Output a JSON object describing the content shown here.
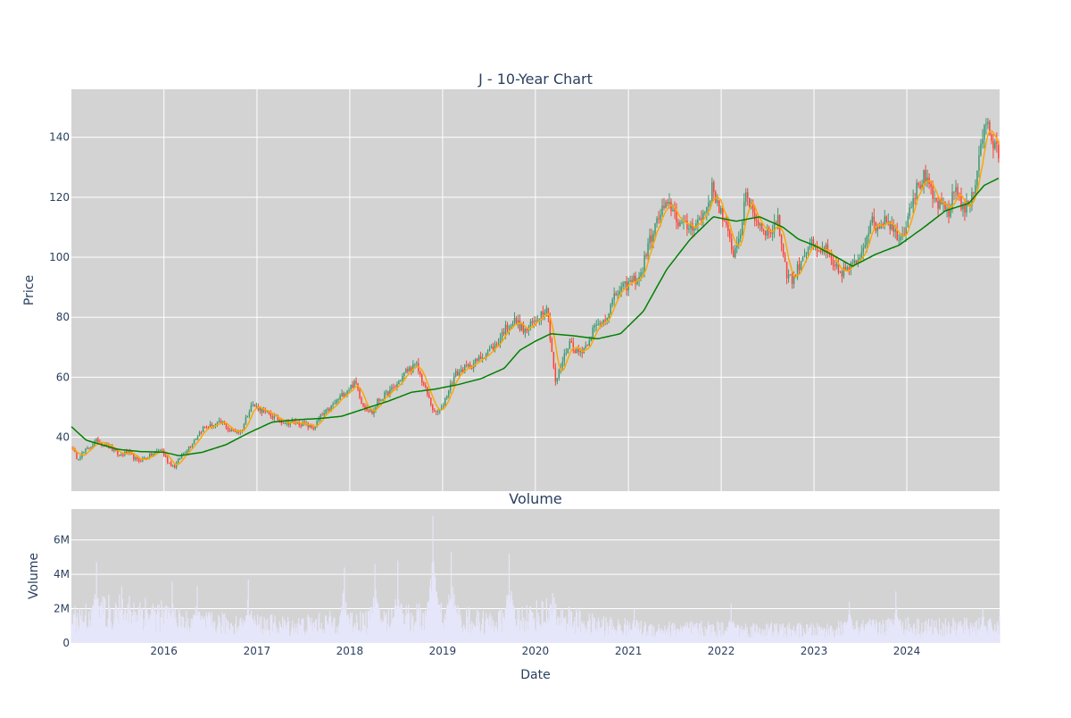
{
  "chart_data": [
    {
      "type": "candlestick",
      "title": "J - 10-Year Chart",
      "ylabel": "Price",
      "ylim": [
        22,
        156
      ],
      "y_ticks": [
        "40",
        "60",
        "80",
        "100",
        "120",
        "140"
      ],
      "y_tick_values": [
        40,
        60,
        80,
        100,
        120,
        140
      ],
      "grid": true,
      "up_color": "#3d9970",
      "down_color": "#ff4136",
      "short_ma_color": "#ffa500",
      "long_ma_color": "#008000",
      "background": "#d3d3d3",
      "close_anchors": [
        [
          "2015-01-02",
          37
        ],
        [
          "2015-01-25",
          33
        ],
        [
          "2015-03-05",
          36
        ],
        [
          "2015-04-15",
          39
        ],
        [
          "2015-05-25",
          37
        ],
        [
          "2015-07-10",
          34
        ],
        [
          "2015-08-10",
          35
        ],
        [
          "2015-09-20",
          32
        ],
        [
          "2015-11-10",
          34
        ],
        [
          "2015-12-20",
          36
        ],
        [
          "2016-01-15",
          32
        ],
        [
          "2016-02-10",
          30
        ],
        [
          "2016-03-10",
          34
        ],
        [
          "2016-04-20",
          38
        ],
        [
          "2016-06-01",
          43
        ],
        [
          "2016-07-15",
          44
        ],
        [
          "2016-08-20",
          45
        ],
        [
          "2016-09-15",
          42
        ],
        [
          "2016-11-01",
          42
        ],
        [
          "2016-11-25",
          48
        ],
        [
          "2016-12-10",
          51
        ],
        [
          "2017-01-20",
          49
        ],
        [
          "2017-03-01",
          47
        ],
        [
          "2017-04-20",
          45
        ],
        [
          "2017-06-01",
          45
        ],
        [
          "2017-07-15",
          44
        ],
        [
          "2017-08-10",
          43
        ],
        [
          "2017-09-10",
          47
        ],
        [
          "2017-10-10",
          49
        ],
        [
          "2017-11-20",
          53
        ],
        [
          "2018-01-05",
          57
        ],
        [
          "2018-01-25",
          58
        ],
        [
          "2018-02-20",
          51
        ],
        [
          "2018-04-01",
          48
        ],
        [
          "2018-04-20",
          52
        ],
        [
          "2018-05-20",
          54
        ],
        [
          "2018-07-01",
          57
        ],
        [
          "2018-08-10",
          62
        ],
        [
          "2018-09-20",
          64
        ],
        [
          "2018-10-25",
          56
        ],
        [
          "2018-11-30",
          48
        ],
        [
          "2018-12-25",
          49
        ],
        [
          "2019-01-25",
          56
        ],
        [
          "2019-02-20",
          61
        ],
        [
          "2019-04-01",
          63
        ],
        [
          "2019-05-10",
          65
        ],
        [
          "2019-06-20",
          68
        ],
        [
          "2019-08-01",
          71
        ],
        [
          "2019-09-01",
          76
        ],
        [
          "2019-10-15",
          79
        ],
        [
          "2019-11-20",
          75
        ],
        [
          "2020-01-01",
          79
        ],
        [
          "2020-02-15",
          84
        ],
        [
          "2020-03-20",
          58
        ],
        [
          "2020-04-15",
          65
        ],
        [
          "2020-05-15",
          72
        ],
        [
          "2020-06-15",
          68
        ],
        [
          "2020-07-15",
          70
        ],
        [
          "2020-08-15",
          76
        ],
        [
          "2020-09-15",
          78
        ],
        [
          "2020-10-15",
          82
        ],
        [
          "2020-11-15",
          88
        ],
        [
          "2020-12-15",
          90
        ],
        [
          "2021-01-15",
          92
        ],
        [
          "2021-02-20",
          94
        ],
        [
          "2021-03-15",
          103
        ],
        [
          "2021-04-15",
          110
        ],
        [
          "2021-05-15",
          116
        ],
        [
          "2021-06-20",
          117
        ],
        [
          "2021-07-15",
          112
        ],
        [
          "2021-08-15",
          110
        ],
        [
          "2021-09-15",
          111
        ],
        [
          "2021-10-15",
          113
        ],
        [
          "2021-11-10",
          118
        ],
        [
          "2021-11-25",
          123
        ],
        [
          "2021-12-20",
          118
        ],
        [
          "2022-01-10",
          112
        ],
        [
          "2022-02-20",
          101
        ],
        [
          "2022-03-20",
          110
        ],
        [
          "2022-04-10",
          121
        ],
        [
          "2022-05-20",
          112
        ],
        [
          "2022-06-15",
          110
        ],
        [
          "2022-07-10",
          108
        ],
        [
          "2022-08-10",
          113
        ],
        [
          "2022-09-15",
          95
        ],
        [
          "2022-10-10",
          92
        ],
        [
          "2022-11-15",
          100
        ],
        [
          "2022-12-15",
          105
        ],
        [
          "2023-01-15",
          101
        ],
        [
          "2023-02-15",
          103
        ],
        [
          "2023-03-15",
          97
        ],
        [
          "2023-04-15",
          95
        ],
        [
          "2023-05-15",
          96
        ],
        [
          "2023-06-15",
          98
        ],
        [
          "2023-07-15",
          104
        ],
        [
          "2023-08-10",
          112
        ],
        [
          "2023-09-10",
          110
        ],
        [
          "2023-10-10",
          114
        ],
        [
          "2023-11-15",
          108
        ],
        [
          "2023-12-15",
          107
        ],
        [
          "2024-01-15",
          118
        ],
        [
          "2024-02-10",
          123
        ],
        [
          "2024-03-10",
          127
        ],
        [
          "2024-04-15",
          119
        ],
        [
          "2024-05-15",
          117
        ],
        [
          "2024-06-15",
          115
        ],
        [
          "2024-07-10",
          124
        ],
        [
          "2024-08-10",
          116
        ],
        [
          "2024-09-10",
          118
        ],
        [
          "2024-10-01",
          128
        ],
        [
          "2024-10-20",
          140
        ],
        [
          "2024-11-15",
          145
        ],
        [
          "2024-12-01",
          138
        ],
        [
          "2024-12-31",
          134
        ]
      ],
      "long_ma_anchors": [
        [
          "2015-01-02",
          43.5
        ],
        [
          "2015-03-01",
          39
        ],
        [
          "2015-07-01",
          36
        ],
        [
          "2015-10-01",
          35.2
        ],
        [
          "2016-01-01",
          35
        ],
        [
          "2016-03-01",
          33.8
        ],
        [
          "2016-06-01",
          35
        ],
        [
          "2016-09-01",
          37.5
        ],
        [
          "2016-12-01",
          41.5
        ],
        [
          "2017-03-01",
          45
        ],
        [
          "2017-06-01",
          45.8
        ],
        [
          "2017-09-01",
          46.2
        ],
        [
          "2017-12-01",
          47
        ],
        [
          "2018-03-01",
          49.5
        ],
        [
          "2018-06-01",
          52
        ],
        [
          "2018-09-01",
          55
        ],
        [
          "2018-12-01",
          56
        ],
        [
          "2019-03-01",
          57.5
        ],
        [
          "2019-06-01",
          59.5
        ],
        [
          "2019-09-01",
          63
        ],
        [
          "2019-11-01",
          69
        ],
        [
          "2020-01-01",
          72
        ],
        [
          "2020-03-01",
          74.5
        ],
        [
          "2020-06-01",
          73.8
        ],
        [
          "2020-09-01",
          72.8
        ],
        [
          "2020-12-01",
          74.5
        ],
        [
          "2021-03-01",
          82
        ],
        [
          "2021-06-01",
          96
        ],
        [
          "2021-09-01",
          106
        ],
        [
          "2021-12-01",
          113.5
        ],
        [
          "2022-03-01",
          112
        ],
        [
          "2022-06-01",
          113.5
        ],
        [
          "2022-09-01",
          110
        ],
        [
          "2022-11-01",
          106
        ],
        [
          "2023-01-01",
          104
        ],
        [
          "2023-04-01",
          100
        ],
        [
          "2023-06-01",
          97
        ],
        [
          "2023-09-01",
          101
        ],
        [
          "2023-12-01",
          104
        ],
        [
          "2024-03-01",
          109.5
        ],
        [
          "2024-06-01",
          115.5
        ],
        [
          "2024-09-01",
          118
        ],
        [
          "2024-11-01",
          124
        ],
        [
          "2024-12-31",
          126.5
        ]
      ]
    },
    {
      "type": "bar",
      "title": "Volume",
      "xlabel": "Date",
      "ylabel": "Volume",
      "ylim": [
        0,
        7800000
      ],
      "y_ticks": [
        "0",
        "2M",
        "4M",
        "6M"
      ],
      "y_tick_values": [
        0,
        2000000,
        4000000,
        6000000
      ],
      "x_ticks": [
        "2016",
        "2017",
        "2018",
        "2019",
        "2020",
        "2021",
        "2022",
        "2023",
        "2024"
      ],
      "x_tick_dates": [
        "2016-01-01",
        "2017-01-01",
        "2018-01-01",
        "2019-01-01",
        "2020-01-01",
        "2021-01-01",
        "2022-01-01",
        "2023-01-01",
        "2024-01-01"
      ],
      "x_range": [
        "2015-01-02",
        "2024-12-31"
      ],
      "bar_color": "#e6e6fa",
      "background": "#d3d3d3",
      "base_volume_anchors": [
        [
          "2015-01-02",
          1600000
        ],
        [
          "2015-06-01",
          2000000
        ],
        [
          "2015-10-01",
          2100000
        ],
        [
          "2016-04-01",
          1300000
        ],
        [
          "2017-01-01",
          1200000
        ],
        [
          "2017-06-01",
          1100000
        ],
        [
          "2018-01-01",
          1400000
        ],
        [
          "2018-07-01",
          1500000
        ],
        [
          "2019-01-01",
          1800000
        ],
        [
          "2019-07-01",
          1300000
        ],
        [
          "2020-03-01",
          1900000
        ],
        [
          "2020-08-01",
          1200000
        ],
        [
          "2021-03-01",
          900000
        ],
        [
          "2022-01-01",
          900000
        ],
        [
          "2023-01-01",
          800000
        ],
        [
          "2023-12-01",
          1100000
        ],
        [
          "2024-06-01",
          1000000
        ],
        [
          "2024-12-31",
          1100000
        ]
      ],
      "volume_spikes": [
        [
          "2015-04-10",
          4700000
        ],
        [
          "2015-07-20",
          3300000
        ],
        [
          "2016-02-01",
          3600000
        ],
        [
          "2016-05-10",
          3300000
        ],
        [
          "2016-11-28",
          3700000
        ],
        [
          "2017-12-10",
          4400000
        ],
        [
          "2018-04-10",
          4600000
        ],
        [
          "2018-07-10",
          4800000
        ],
        [
          "2018-11-25",
          7400000
        ],
        [
          "2019-02-05",
          5300000
        ],
        [
          "2019-09-20",
          5200000
        ],
        [
          "2020-03-10",
          2900000
        ],
        [
          "2021-01-25",
          2000000
        ],
        [
          "2022-02-10",
          2300000
        ],
        [
          "2023-05-20",
          2400000
        ],
        [
          "2023-11-20",
          3000000
        ],
        [
          "2024-10-25",
          2000000
        ]
      ]
    }
  ]
}
